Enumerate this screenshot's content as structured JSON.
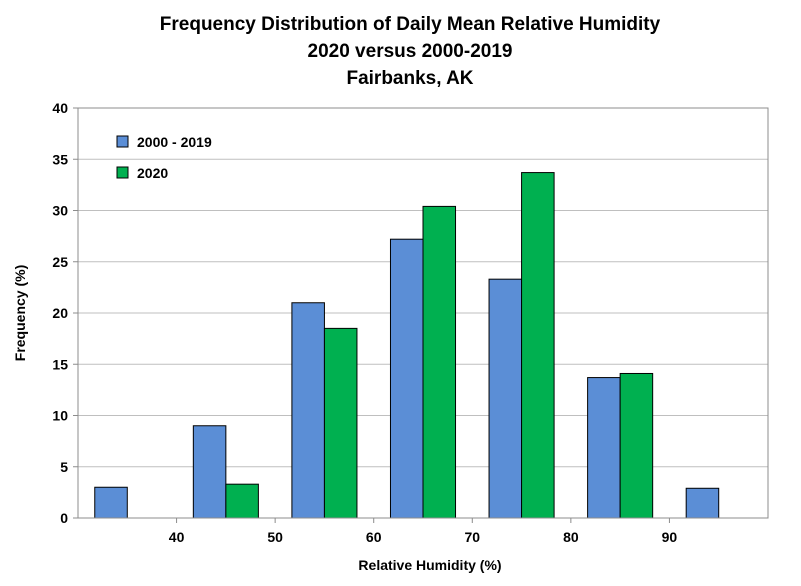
{
  "chart_data": {
    "type": "bar",
    "title_lines": [
      "Frequency Distribution of Daily Mean Relative Humidity",
      "2020 versus 2000-2019",
      "Fairbanks, AK"
    ],
    "xlabel": "Relative Humidity (%)",
    "ylabel": "Frequency (%)",
    "categories": [
      35,
      45,
      55,
      65,
      75,
      85,
      95
    ],
    "xlim": [
      30,
      100
    ],
    "x_ticks": [
      40,
      50,
      60,
      70,
      80,
      90
    ],
    "ylim": [
      0,
      40
    ],
    "y_ticks": [
      0,
      5,
      10,
      15,
      20,
      25,
      30,
      35,
      40
    ],
    "grid": true,
    "legend_position": "top-left",
    "series": [
      {
        "name": "2000 - 2019",
        "color": "#5b8ed6",
        "values": [
          3.0,
          9.0,
          21.0,
          27.2,
          23.3,
          13.7,
          2.9
        ]
      },
      {
        "name": "2020",
        "color": "#00b050",
        "values": [
          0,
          3.3,
          18.5,
          30.4,
          33.7,
          14.1,
          0
        ]
      }
    ]
  }
}
